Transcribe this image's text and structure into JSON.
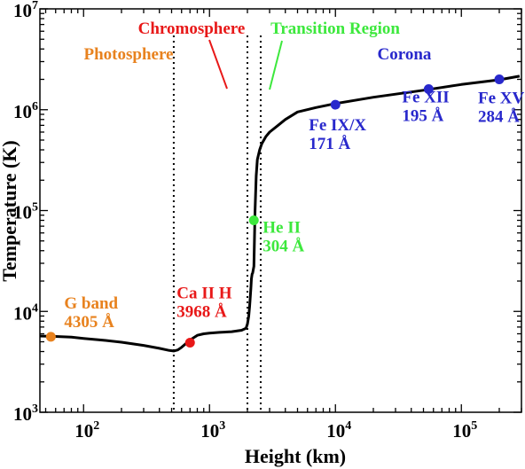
{
  "chart_data": {
    "type": "line",
    "title": "",
    "xlabel": "Height (km)",
    "ylabel": "Temperature (K)",
    "xscale": "log",
    "yscale": "log",
    "xlim": [
      45,
      300000
    ],
    "ylim": [
      1000,
      10000000
    ],
    "x_ticks": [
      {
        "value": 100,
        "base": "10",
        "exp": "2"
      },
      {
        "value": 1000,
        "base": "10",
        "exp": "3"
      },
      {
        "value": 10000,
        "base": "10",
        "exp": "4"
      },
      {
        "value": 100000,
        "base": "10",
        "exp": "5"
      }
    ],
    "y_ticks": [
      {
        "value": 1000,
        "base": "10",
        "exp": "3"
      },
      {
        "value": 10000,
        "base": "10",
        "exp": "4"
      },
      {
        "value": 100000,
        "base": "10",
        "exp": "5"
      },
      {
        "value": 1000000,
        "base": "10",
        "exp": "6"
      },
      {
        "value": 10000000,
        "base": "10",
        "exp": "7"
      }
    ],
    "series": [
      {
        "color": "#000000",
        "x": [
          45,
          60,
          80,
          100,
          150,
          200,
          300,
          400,
          480,
          520,
          560,
          600,
          650,
          700,
          800,
          900,
          1000,
          1200,
          1500,
          1800,
          1950,
          2000,
          2050,
          2080,
          2100,
          2130,
          2150,
          2180,
          2200,
          2250,
          2300,
          2350,
          2400,
          2500,
          2600,
          2800,
          3000,
          3500,
          4000,
          5000,
          7000,
          10000,
          20000,
          50000,
          100000,
          200000,
          290000
        ],
        "y": [
          5700,
          5650,
          5550,
          5400,
          5150,
          4950,
          4600,
          4300,
          4100,
          4050,
          4150,
          4400,
          4800,
          5200,
          5800,
          6000,
          6100,
          6200,
          6300,
          6500,
          6800,
          7500,
          9000,
          11000,
          13000,
          17000,
          21000,
          23500,
          24000,
          28000,
          100000,
          220000,
          320000,
          400000,
          460000,
          540000,
          600000,
          700000,
          800000,
          950000,
          1050000,
          1150000,
          1330000,
          1560000,
          1780000,
          1980000,
          2150000
        ]
      }
    ],
    "markers": [
      {
        "x": 55,
        "y": 5600,
        "color": "#e8821e",
        "label_lines": [
          "G band",
          "4305 Å"
        ]
      },
      {
        "x": 700,
        "y": 4900,
        "color": "#e81818",
        "label_lines": [
          "Ca II H",
          "3968 Å"
        ]
      },
      {
        "x": 2250,
        "y": 80000,
        "color": "#3de83d",
        "label_lines": [
          "He II",
          "304 Å"
        ]
      },
      {
        "x": 10000,
        "y": 1120000,
        "color": "#2828cc",
        "label_lines": [
          "Fe IX/X",
          "171 Å"
        ]
      },
      {
        "x": 55000,
        "y": 1600000,
        "color": "#2828cc",
        "label_lines": [
          "Fe XII",
          "195 Å"
        ]
      },
      {
        "x": 200000,
        "y": 2000000,
        "color": "#2828cc",
        "label_lines": [
          "Fe XV",
          "284 Å"
        ]
      }
    ],
    "boundaries_x": [
      520,
      2000,
      2550
    ],
    "regions": [
      {
        "label": "Photosphere",
        "color": "#e8821e"
      },
      {
        "label": "Chromosphere",
        "color": "#e81818"
      },
      {
        "label": "Transition Region",
        "color": "#3de83d"
      },
      {
        "label": "Corona",
        "color": "#2828cc"
      }
    ],
    "grid": false,
    "legend": "none"
  }
}
